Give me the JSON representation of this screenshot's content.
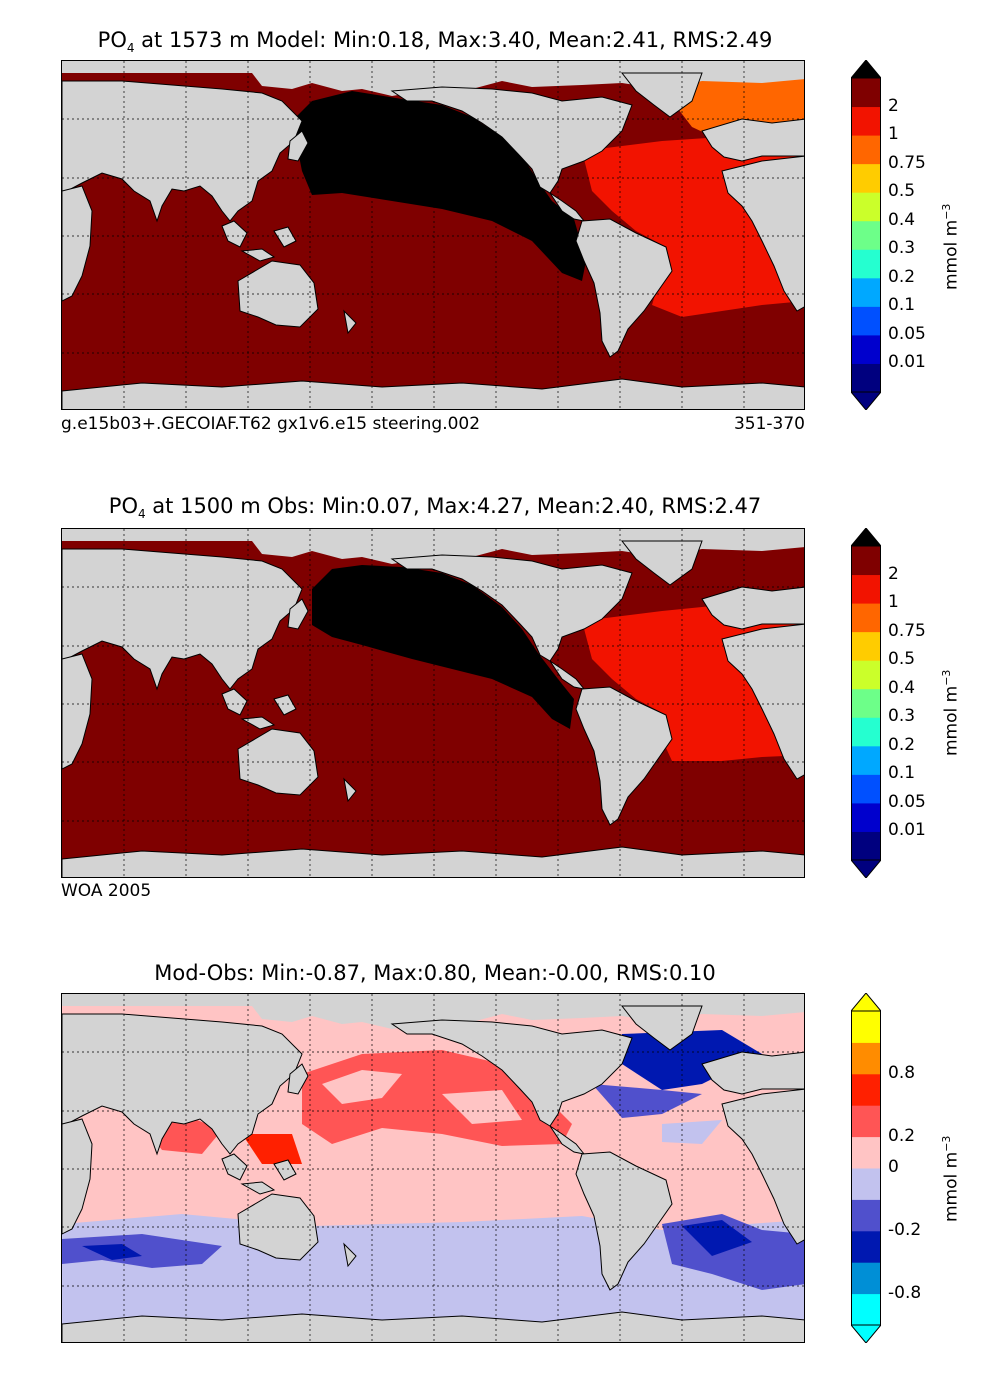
{
  "panels": [
    {
      "id": "model",
      "title_prefix": "PO",
      "title_sub": "4",
      "title_rest": " at 1573 m Model: Min:0.18, Max:3.40, Mean:2.41, RMS:2.49",
      "footer_left": "g.e15b03+.GECOIAF.T62 gx1v6.e15 steering.002",
      "footer_right": "351-370",
      "colorbar": {
        "colors": [
          "#00007f",
          "#0000cd",
          "#0050ff",
          "#00a8ff",
          "#25ffd0",
          "#6dff89",
          "#cbff2a",
          "#ffcc00",
          "#ff6600",
          "#f21300",
          "#7f0000"
        ],
        "labels": [
          "0.01",
          "0.05",
          "0.1",
          "0.2",
          "0.3",
          "0.4",
          "0.5",
          "0.75",
          "1",
          "2"
        ],
        "extend_low": "#00007f",
        "extend_high": "#000000"
      },
      "units": "mmol m",
      "units_sup": "−3"
    },
    {
      "id": "obs",
      "title_prefix": "PO",
      "title_sub": "4",
      "title_rest": " at 1500 m Obs: Min:0.07, Max:4.27, Mean:2.40, RMS:2.47",
      "footer_left": "WOA 2005",
      "footer_right": "",
      "colorbar": {
        "colors": [
          "#00007f",
          "#0000cd",
          "#0050ff",
          "#00a8ff",
          "#25ffd0",
          "#6dff89",
          "#cbff2a",
          "#ffcc00",
          "#ff6600",
          "#f21300",
          "#7f0000"
        ],
        "labels": [
          "0.01",
          "0.05",
          "0.1",
          "0.2",
          "0.3",
          "0.4",
          "0.5",
          "0.75",
          "1",
          "2"
        ],
        "extend_low": "#00007f",
        "extend_high": "#000000"
      },
      "units": "mmol m",
      "units_sup": "−3"
    },
    {
      "id": "diff",
      "title_prefix": "",
      "title_sub": "",
      "title_rest": "Mod-Obs: Min:-0.87, Max:0.80, Mean:-0.00, RMS:0.10",
      "footer_left": "",
      "footer_right": "",
      "colorbar": {
        "colors": [
          "#00ffff",
          "#008fd6",
          "#0018b0",
          "#5050cc",
          "#c2c2ee",
          "#ffc4c4",
          "#ff5555",
          "#ff2000",
          "#ff8c00",
          "#ffff00"
        ],
        "labels": [
          "-0.8",
          "-0.2",
          "0",
          "0.2",
          "0.8"
        ],
        "extend_low": "#00ffff",
        "extend_high": "#ffff00"
      },
      "units": "mmol m",
      "units_sup": "−3"
    }
  ],
  "chart_data": [
    {
      "type": "heatmap",
      "title": "PO4 at 1573 m Model: Min:0.18, Max:3.40, Mean:2.41, RMS:2.49",
      "stats": {
        "min": 0.18,
        "max": 3.4,
        "mean": 2.41,
        "rms": 2.49
      },
      "colorbar_levels": [
        0.01,
        0.05,
        0.1,
        0.2,
        0.3,
        0.4,
        0.5,
        0.75,
        1,
        2
      ],
      "units": "mmol m^-3",
      "dominant_regions": {
        "North Pacific": ">2 (black)",
        "Indian/Southern/South Pacific": "2",
        "Atlantic": "1-2",
        "Arctic": "0.75-1"
      }
    },
    {
      "type": "heatmap",
      "title": "PO4 at 1500 m Obs: Min:0.07, Max:4.27, Mean:2.40, RMS:2.47",
      "stats": {
        "min": 0.07,
        "max": 4.27,
        "mean": 2.4,
        "rms": 2.47
      },
      "colorbar_levels": [
        0.01,
        0.05,
        0.1,
        0.2,
        0.3,
        0.4,
        0.5,
        0.75,
        1,
        2
      ],
      "units": "mmol m^-3",
      "source": "WOA 2005"
    },
    {
      "type": "heatmap",
      "title": "Mod-Obs: Min:-0.87, Max:0.80, Mean:-0.00, RMS:0.10",
      "stats": {
        "min": -0.87,
        "max": 0.8,
        "mean": -0.0,
        "rms": 0.1
      },
      "colorbar_levels": [
        -0.8,
        -0.2,
        0,
        0.2,
        0.8
      ],
      "units": "mmol m^-3"
    }
  ]
}
